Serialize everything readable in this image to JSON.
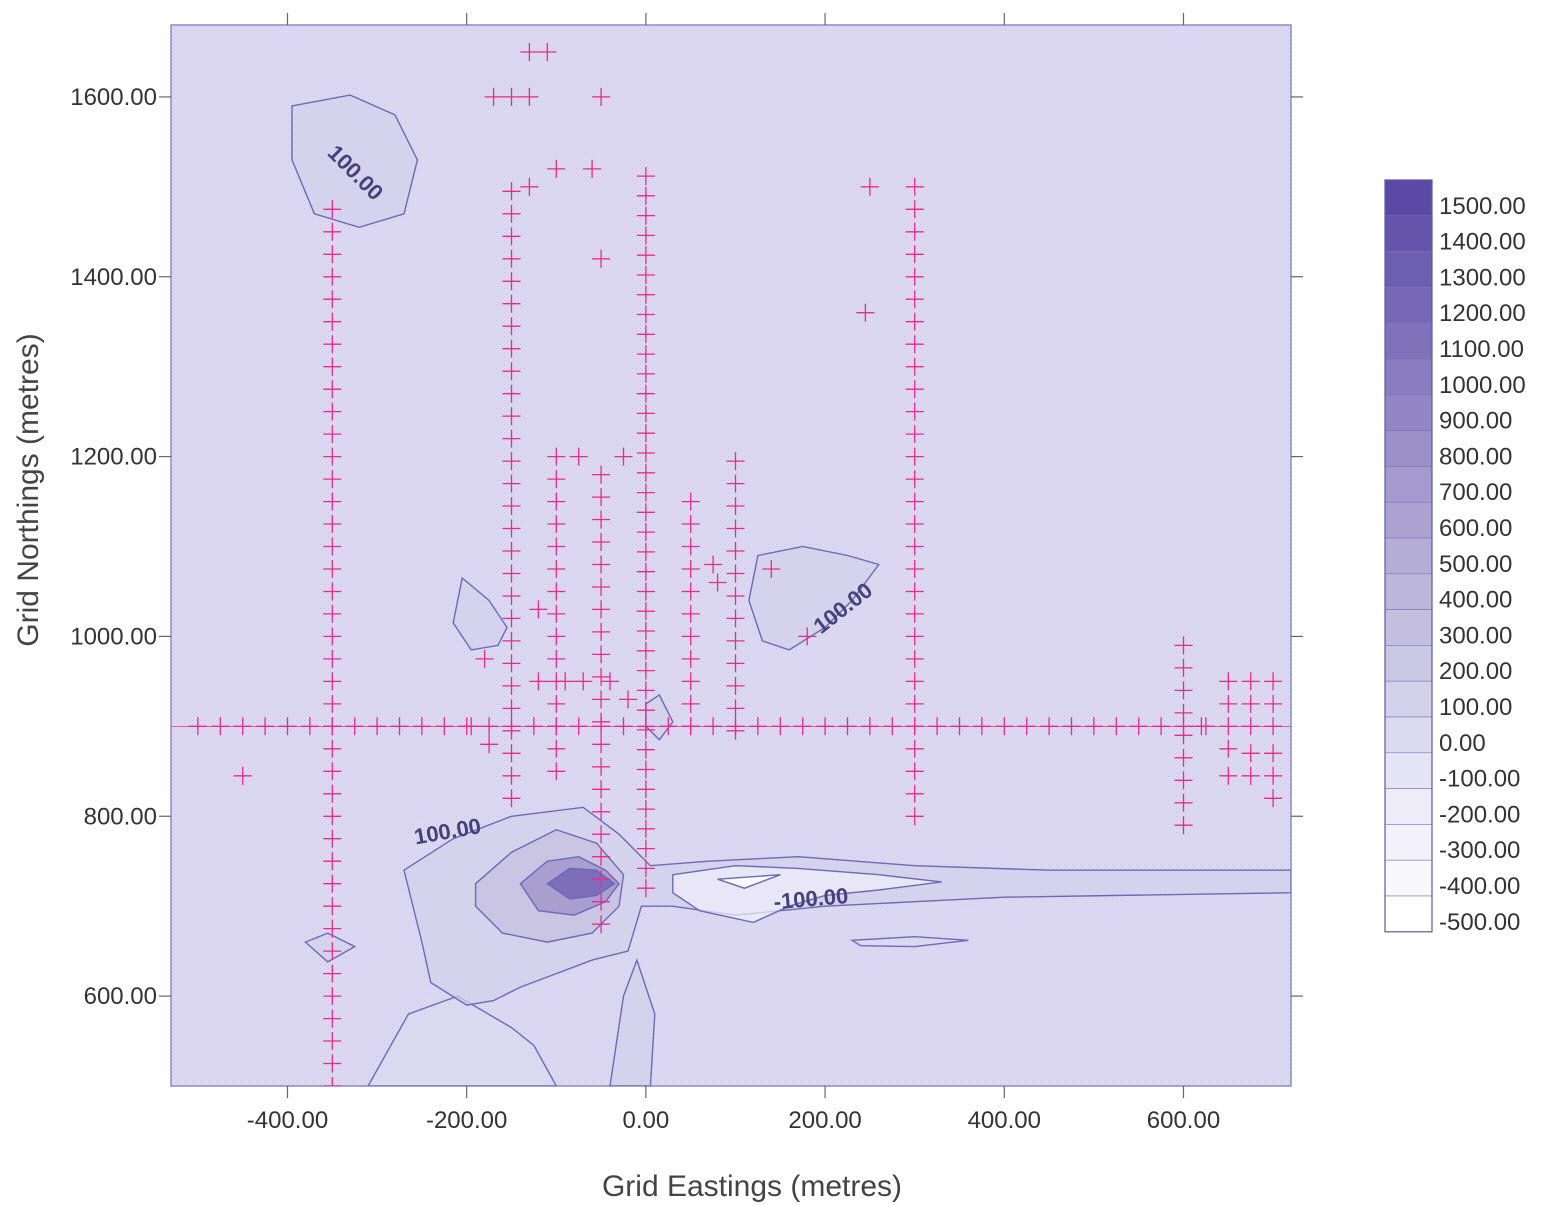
{
  "chart_data": {
    "type": "contour",
    "title": "",
    "xlabel": "Grid Eastings (metres)",
    "ylabel": "Grid Northings (metres)",
    "xlim": [
      -530,
      720
    ],
    "ylim": [
      500,
      1680
    ],
    "x_ticks": [
      -400,
      -200,
      0,
      200,
      400,
      600
    ],
    "x_tick_labels": [
      "-400.00",
      "-200.00",
      "0.00",
      "200.00",
      "400.00",
      "600.00"
    ],
    "y_ticks": [
      600,
      800,
      1000,
      1200,
      1400,
      1600
    ],
    "y_tick_labels": [
      "600.00",
      "800.00",
      "1000.00",
      "1200.00",
      "1400.00",
      "1600.00"
    ],
    "grid": false,
    "legend_position": "right",
    "legend": {
      "levels": [
        "1500.00",
        "1400.00",
        "1300.00",
        "1200.00",
        "1100.00",
        "1000.00",
        "900.00",
        "800.00",
        "700.00",
        "600.00",
        "500.00",
        "400.00",
        "300.00",
        "200.00",
        "100.00",
        "0.00",
        "-100.00",
        "-200.00",
        "-300.00",
        "-400.00",
        "-500.00"
      ],
      "colors": [
        "#5a4aa6",
        "#6455ab",
        "#6d5fb0",
        "#7768b5",
        "#8072ba",
        "#897cbf",
        "#9286c4",
        "#9b90c9",
        "#a49acd",
        "#aca3d2",
        "#b4add6",
        "#bcb6da",
        "#c4bfdf",
        "#cbc8e4",
        "#d3d0ea",
        "#dcdaf0",
        "#e5e4f5",
        "#edecf8",
        "#f3f2fa",
        "#f9f9fd",
        "#ffffff"
      ]
    },
    "contour_labels": [
      {
        "text": "100.00",
        "x": -330,
        "y": 1510,
        "angle": 45
      },
      {
        "text": "100.00",
        "x": 225,
        "y": 1025,
        "angle": -38
      },
      {
        "text": "100.00",
        "x": -220,
        "y": 775,
        "angle": -10
      },
      {
        "text": "-100.00",
        "x": 185,
        "y": 700,
        "angle": -5
      }
    ],
    "contours": [
      {
        "level": 100,
        "points": [
          [
            -395,
            1590
          ],
          [
            -330,
            1602
          ],
          [
            -280,
            1580
          ],
          [
            -255,
            1530
          ],
          [
            -270,
            1470
          ],
          [
            -320,
            1455
          ],
          [
            -370,
            1470
          ],
          [
            -395,
            1530
          ]
        ]
      },
      {
        "level": 100,
        "points": [
          [
            125,
            1090
          ],
          [
            175,
            1100
          ],
          [
            225,
            1090
          ],
          [
            260,
            1080
          ],
          [
            230,
            1040
          ],
          [
            200,
            1010
          ],
          [
            160,
            985
          ],
          [
            130,
            995
          ],
          [
            115,
            1040
          ]
        ]
      },
      {
        "level": 100,
        "points": [
          [
            -205,
            1065
          ],
          [
            -175,
            1040
          ],
          [
            -155,
            1010
          ],
          [
            -165,
            990
          ],
          [
            -195,
            985
          ],
          [
            -215,
            1015
          ]
        ]
      },
      {
        "level": 100,
        "points": [
          [
            -270,
            740
          ],
          [
            -215,
            775
          ],
          [
            -150,
            800
          ],
          [
            -70,
            810
          ],
          [
            -30,
            780
          ],
          [
            5,
            745
          ],
          [
            70,
            750
          ],
          [
            170,
            755
          ],
          [
            300,
            745
          ],
          [
            450,
            740
          ],
          [
            720,
            740
          ],
          [
            720,
            715
          ],
          [
            400,
            710
          ],
          [
            300,
            705
          ],
          [
            200,
            700
          ],
          [
            100,
            690
          ],
          [
            30,
            700
          ],
          [
            -5,
            700
          ],
          [
            -20,
            650
          ],
          [
            -60,
            640
          ],
          [
            -100,
            625
          ],
          [
            -140,
            610
          ],
          [
            -170,
            595
          ],
          [
            -200,
            590
          ],
          [
            -240,
            615
          ],
          [
            -250,
            660
          ]
        ]
      },
      {
        "level": 300,
        "points": [
          [
            -190,
            725
          ],
          [
            -150,
            760
          ],
          [
            -100,
            785
          ],
          [
            -55,
            770
          ],
          [
            -25,
            735
          ],
          [
            -30,
            700
          ],
          [
            -60,
            670
          ],
          [
            -110,
            660
          ],
          [
            -160,
            670
          ],
          [
            -190,
            700
          ]
        ]
      },
      {
        "level": 700,
        "points": [
          [
            -140,
            725
          ],
          [
            -110,
            750
          ],
          [
            -75,
            755
          ],
          [
            -45,
            740
          ],
          [
            -30,
            725
          ],
          [
            -45,
            705
          ],
          [
            -80,
            690
          ],
          [
            -120,
            695
          ]
        ]
      },
      {
        "level": 1200,
        "points": [
          [
            -110,
            725
          ],
          [
            -85,
            742
          ],
          [
            -55,
            740
          ],
          [
            -35,
            725
          ],
          [
            -55,
            712
          ],
          [
            -85,
            708
          ]
        ]
      },
      {
        "level": -100,
        "points": [
          [
            30,
            735
          ],
          [
            100,
            745
          ],
          [
            170,
            742
          ],
          [
            260,
            735
          ],
          [
            330,
            727
          ],
          [
            260,
            718
          ],
          [
            200,
            712
          ],
          [
            160,
            700
          ],
          [
            120,
            682
          ],
          [
            60,
            695
          ],
          [
            30,
            715
          ]
        ]
      },
      {
        "level": -300,
        "points": [
          [
            80,
            730
          ],
          [
            150,
            735
          ],
          [
            110,
            720
          ]
        ]
      },
      {
        "level": 0,
        "points": [
          [
            230,
            662
          ],
          [
            300,
            666
          ],
          [
            360,
            662
          ],
          [
            300,
            655
          ],
          [
            240,
            656
          ]
        ]
      },
      {
        "level": 100,
        "points": [
          [
            -380,
            660
          ],
          [
            -355,
            670
          ],
          [
            -325,
            655
          ],
          [
            -355,
            638
          ]
        ]
      },
      {
        "level": 0,
        "points": [
          [
            -310,
            500
          ],
          [
            -265,
            580
          ],
          [
            -210,
            600
          ],
          [
            -150,
            565
          ],
          [
            -125,
            545
          ],
          [
            -100,
            500
          ]
        ]
      },
      {
        "level": 100,
        "points": [
          [
            -40,
            500
          ],
          [
            -25,
            600
          ],
          [
            -10,
            640
          ],
          [
            10,
            580
          ],
          [
            5,
            500
          ]
        ]
      },
      {
        "level": 100,
        "points": [
          [
            0,
            925
          ],
          [
            15,
            935
          ],
          [
            30,
            905
          ],
          [
            15,
            885
          ],
          [
            0,
            900
          ]
        ]
      }
    ],
    "survey_stations": [
      {
        "x": -350,
        "y": [
          500,
          1480
        ],
        "step": 25
      },
      {
        "x": -150,
        "y": [
          820,
          1500
        ],
        "step": 25
      },
      {
        "x": -100,
        "y": [
          850,
          1200
        ],
        "step": 25
      },
      {
        "x": -50,
        "y": [
          680,
          1200
        ],
        "step": 25
      },
      {
        "x": 0,
        "y": [
          720,
          1520
        ],
        "step": 22
      },
      {
        "x": 50,
        "y": [
          900,
          1150
        ],
        "step": 25
      },
      {
        "x": 100,
        "y": [
          895,
          1200
        ],
        "step": 25
      },
      {
        "x": 300,
        "y": [
          800,
          1500
        ],
        "step": 25
      },
      {
        "x": 600,
        "y": [
          790,
          1010
        ],
        "step": 25
      }
    ],
    "survey_line_y": 900,
    "survey_line_x_range": [
      -500,
      700
    ],
    "survey_line_step": 25,
    "extra_stations": [
      [
        -450,
        845
      ],
      [
        -180,
        975
      ],
      [
        -120,
        950
      ],
      [
        -90,
        950
      ],
      [
        -70,
        950
      ],
      [
        -40,
        950
      ],
      [
        -20,
        930
      ],
      [
        -195,
        900
      ],
      [
        -175,
        880
      ],
      [
        -120,
        1030
      ],
      [
        -130,
        1650
      ],
      [
        -110,
        1650
      ],
      [
        -170,
        1600
      ],
      [
        -150,
        1600
      ],
      [
        -130,
        1600
      ],
      [
        -50,
        1600
      ],
      [
        -100,
        1520
      ],
      [
        -60,
        1520
      ],
      [
        -130,
        1500
      ],
      [
        -50,
        1420
      ],
      [
        -75,
        1200
      ],
      [
        -25,
        1200
      ],
      [
        75,
        1080
      ],
      [
        80,
        1060
      ],
      [
        140,
        1075
      ],
      [
        250,
        1500
      ],
      [
        245,
        1360
      ],
      [
        180,
        1000
      ],
      [
        650,
        950
      ],
      [
        675,
        950
      ],
      [
        700,
        950
      ],
      [
        650,
        925
      ],
      [
        675,
        925
      ],
      [
        700,
        925
      ],
      [
        650,
        875
      ],
      [
        675,
        870
      ],
      [
        700,
        870
      ],
      [
        650,
        845
      ],
      [
        675,
        845
      ],
      [
        700,
        845
      ],
      [
        700,
        820
      ],
      [
        620,
        900
      ]
    ]
  }
}
